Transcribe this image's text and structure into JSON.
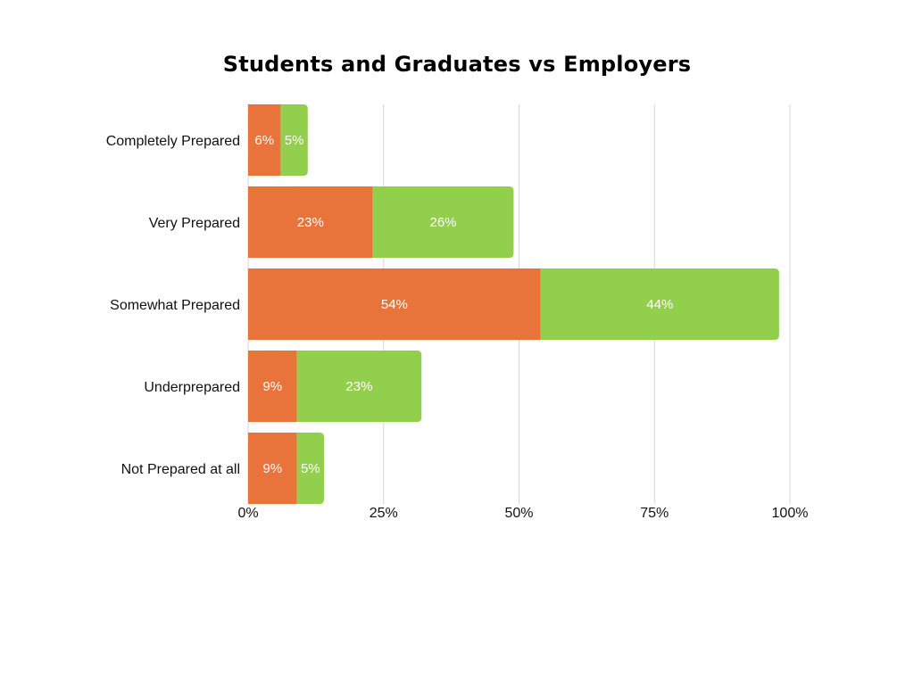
{
  "chart_data": {
    "type": "bar",
    "orientation": "horizontal",
    "stacked": true,
    "title": "Students and Graduates vs Employers",
    "categories": [
      "Completely Prepared",
      "Very Prepared",
      "Somewhat Prepared",
      "Underprepared",
      "Not Prepared at all"
    ],
    "series": [
      {
        "color": "#E8743B",
        "values": [
          6,
          23,
          54,
          9,
          9
        ],
        "labels": [
          "6%",
          "23%",
          "54%",
          "9%",
          "9%"
        ]
      },
      {
        "color": "#92CF4D",
        "values": [
          5,
          26,
          44,
          23,
          5
        ],
        "labels": [
          "5%",
          "26%",
          "44%",
          "23%",
          "5%"
        ]
      }
    ],
    "xlim": [
      0,
      100
    ],
    "xticks": [
      0,
      25,
      50,
      75,
      100
    ],
    "xtick_labels": [
      "0%",
      "25%",
      "50%",
      "75%",
      "100%"
    ],
    "grid": true,
    "legend": "none"
  }
}
